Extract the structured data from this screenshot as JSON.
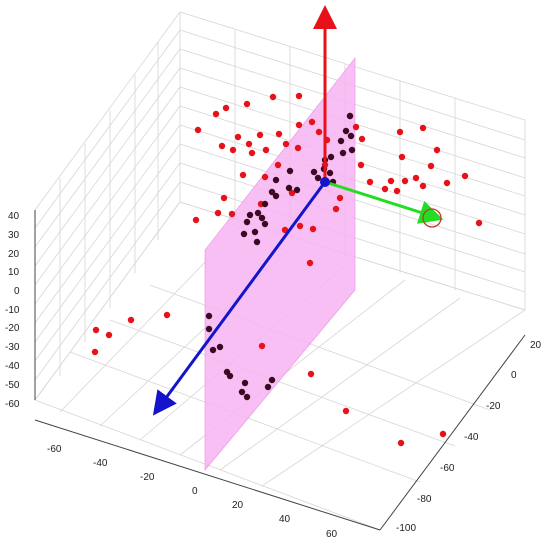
{
  "chart_data": {
    "type": "scatter",
    "title": "",
    "grid": true,
    "view": "3d",
    "axes": {
      "x": {
        "label": "",
        "ticks": [
          "-60",
          "-40",
          "-20",
          "0",
          "20",
          "40",
          "60"
        ]
      },
      "y": {
        "label": "",
        "ticks": [
          "20",
          "0",
          "-20",
          "-40",
          "-60",
          "-80",
          "-100"
        ]
      },
      "z": {
        "label": "",
        "ticks": [
          "40",
          "30",
          "20",
          "10",
          "0",
          "-10",
          "-20",
          "-30",
          "-40",
          "-50",
          "-60"
        ]
      }
    },
    "plane": {
      "color": "#f7b4f2",
      "orientation": "vertical"
    },
    "vectors": [
      {
        "color": "#e8111a",
        "direction": "up"
      },
      {
        "color": "#22dd22",
        "direction": "right",
        "circled": true
      },
      {
        "color": "#1414cc",
        "direction": "down-left"
      }
    ],
    "origin_marker_color": "#1414cc",
    "series": [
      {
        "color": "#e8111a"
      },
      {
        "color": "#3a0a24"
      }
    ],
    "colors": {
      "red_points": "#e8111a",
      "dark_points": "#3a0a24",
      "grid": "#d6d6d6",
      "axis": "#444444"
    }
  }
}
